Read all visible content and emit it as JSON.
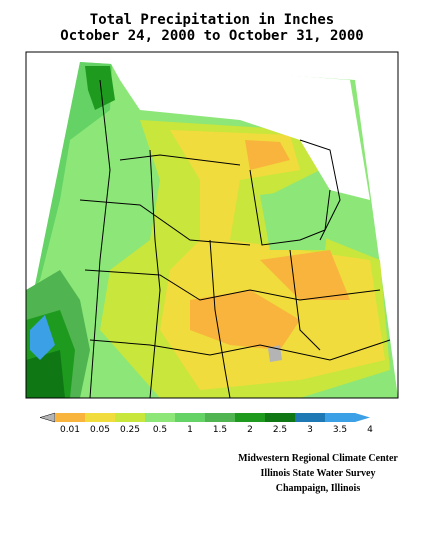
{
  "title": "Total Precipitation in Inches",
  "subtitle": "October 24, 2000 to October 31, 2000",
  "legend": {
    "labels": [
      0.01,
      0.05,
      0.25,
      0.5,
      1,
      1.5,
      2,
      2.5,
      3,
      3.5,
      4
    ],
    "below_color": "#b4b4b4",
    "colors": [
      "#f8b43c",
      "#f0dc3c",
      "#c8e63c",
      "#8ce678",
      "#64d264",
      "#50b450",
      "#1e9b1e",
      "#0f7814",
      "#1e78b4",
      "#3ca0e6"
    ],
    "above_color": "#3ca0e6"
  },
  "credits": [
    "Midwestern Regional Climate Center",
    "Illinois State Water Survey",
    "Champaign, Illinois"
  ]
}
